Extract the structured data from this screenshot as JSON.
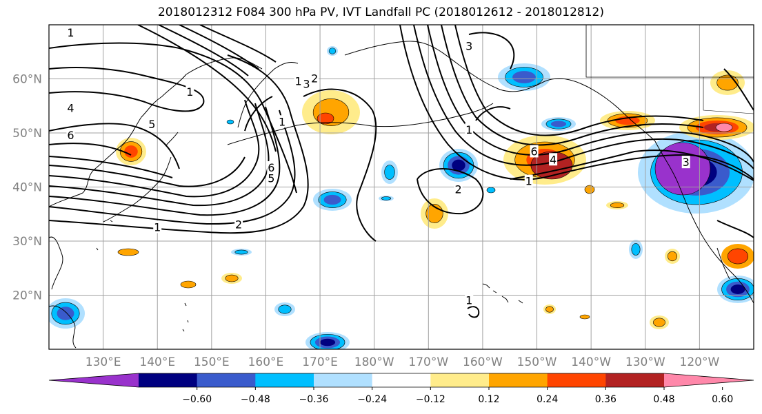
{
  "title": "2018012312 F084 300 hPa PV, IVT Landfall PC (2018012612 - 2018012812)",
  "map": {
    "lon_range": [
      120,
      250
    ],
    "lat_range": [
      10,
      70
    ],
    "lat_ticks": [
      {
        "value": 20,
        "label": "20°N"
      },
      {
        "value": 30,
        "label": "30°N"
      },
      {
        "value": 40,
        "label": "40°N"
      },
      {
        "value": 50,
        "label": "50°N"
      },
      {
        "value": 60,
        "label": "60°N"
      }
    ],
    "lon_ticks": [
      {
        "value": 130,
        "label": "130°E"
      },
      {
        "value": 140,
        "label": "140°E"
      },
      {
        "value": 150,
        "label": "150°E"
      },
      {
        "value": 160,
        "label": "160°E"
      },
      {
        "value": 170,
        "label": "170°E"
      },
      {
        "value": 180,
        "label": "180°W"
      },
      {
        "value": 190,
        "label": "170°W"
      },
      {
        "value": 200,
        "label": "160°W"
      },
      {
        "value": 210,
        "label": "150°W"
      },
      {
        "value": 220,
        "label": "140°W"
      },
      {
        "value": 230,
        "label": "130°W"
      },
      {
        "value": 240,
        "label": "120°W"
      }
    ],
    "contour_labels": [
      {
        "text": "1",
        "lon": 124,
        "lat": 68.5
      },
      {
        "text": "4",
        "lon": 124,
        "lat": 54.5
      },
      {
        "text": "6",
        "lon": 124,
        "lat": 49.5
      },
      {
        "text": "5",
        "lon": 139,
        "lat": 51.5
      },
      {
        "text": "1",
        "lon": 146,
        "lat": 57.5
      },
      {
        "text": "1",
        "lon": 163,
        "lat": 52
      },
      {
        "text": "1",
        "lon": 166,
        "lat": 59.5
      },
      {
        "text": "3",
        "lon": 167.5,
        "lat": 59
      },
      {
        "text": "2",
        "lon": 169,
        "lat": 60
      },
      {
        "text": "6",
        "lon": 161,
        "lat": 43.5
      },
      {
        "text": "5",
        "lon": 161,
        "lat": 41.5
      },
      {
        "text": "1",
        "lon": 140,
        "lat": 32.5
      },
      {
        "text": "2",
        "lon": 155,
        "lat": 33
      },
      {
        "text": "3",
        "lon": 197.5,
        "lat": 66
      },
      {
        "text": "1",
        "lon": 197.5,
        "lat": 50.5
      },
      {
        "text": "2",
        "lon": 195.5,
        "lat": 39.5
      },
      {
        "text": "6",
        "lon": 209.5,
        "lat": 46.5
      },
      {
        "text": "4",
        "lon": 213,
        "lat": 45
      },
      {
        "text": "1",
        "lon": 208.5,
        "lat": 41
      },
      {
        "text": "3",
        "lon": 237.5,
        "lat": 44.5
      },
      {
        "text": "1",
        "lon": 197.5,
        "lat": 19
      }
    ],
    "colors": {
      "neg_060": "#9932cc",
      "neg_048": "#000080",
      "neg_036": "#3a5bcc",
      "neg_024": "#00bfff",
      "neg_012": "#b0e0ff",
      "pos_012": "#ffec8b",
      "pos_024": "#ffa500",
      "pos_036": "#ff4500",
      "pos_048": "#b22222",
      "pos_060": "#ff88aa"
    }
  },
  "colorbar": {
    "colors": [
      "#9932cc",
      "#000080",
      "#3a5bcc",
      "#00bfff",
      "#b0e0ff",
      "#ffffff",
      "#ffec8b",
      "#ffa500",
      "#ff4500",
      "#b22222",
      "#ff88aa"
    ],
    "tick_labels": [
      "−0.60",
      "−0.48",
      "−0.36",
      "−0.24",
      "−0.12",
      "0.12",
      "0.24",
      "0.36",
      "0.48",
      "0.60"
    ]
  }
}
